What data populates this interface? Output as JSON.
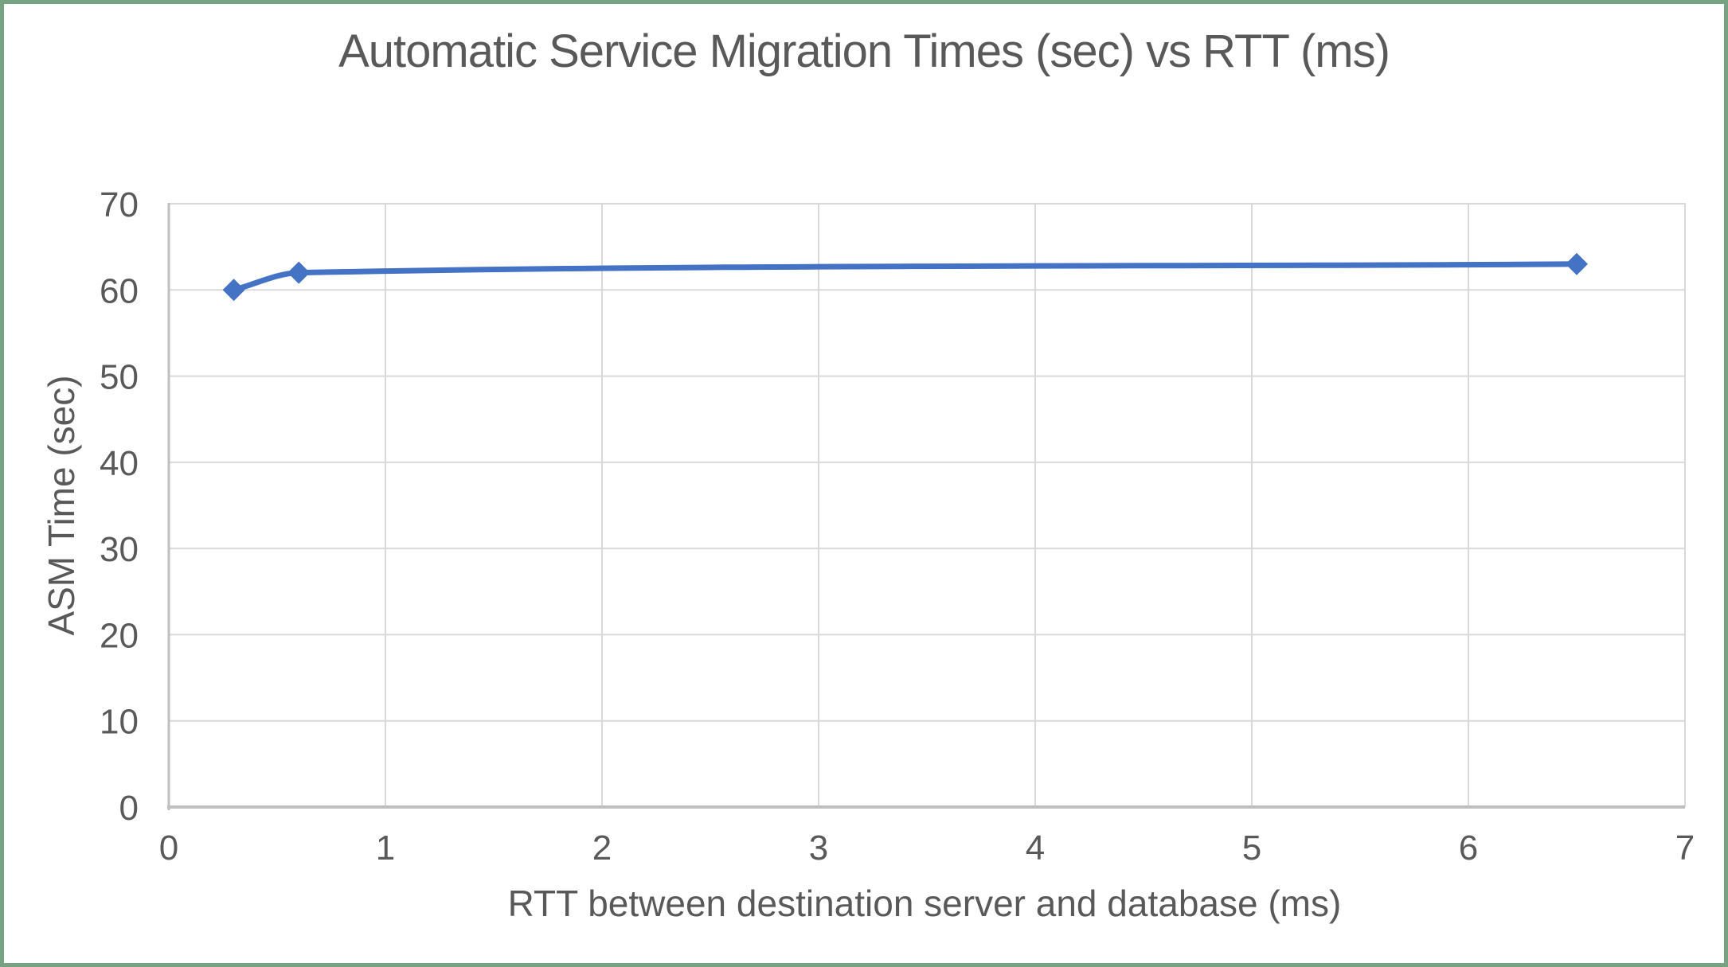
{
  "page": {
    "frame_color": "#78A383",
    "background_color": "#FFFFFF"
  },
  "chart_data": {
    "type": "line",
    "title": "Automatic Service Migration Times (sec) vs RTT (ms)",
    "xlabel": "RTT between destination server and database (ms)",
    "ylabel": "ASM Time (sec)",
    "x": [
      0.3,
      0.6,
      6.5
    ],
    "y": [
      60,
      62,
      63
    ],
    "xlim": [
      0,
      7
    ],
    "ylim": [
      0,
      70
    ],
    "x_ticks": [
      0,
      1,
      2,
      3,
      4,
      5,
      6,
      7
    ],
    "y_ticks": [
      0,
      10,
      20,
      30,
      40,
      50,
      60,
      70
    ],
    "grid": true,
    "smooth": true,
    "marker": "diamond",
    "legend": "none",
    "line_color": "#4472C4",
    "gridline_color": "#D9D9D9",
    "axis_line_color": "#BFBFBF",
    "text_color": "#595959"
  }
}
